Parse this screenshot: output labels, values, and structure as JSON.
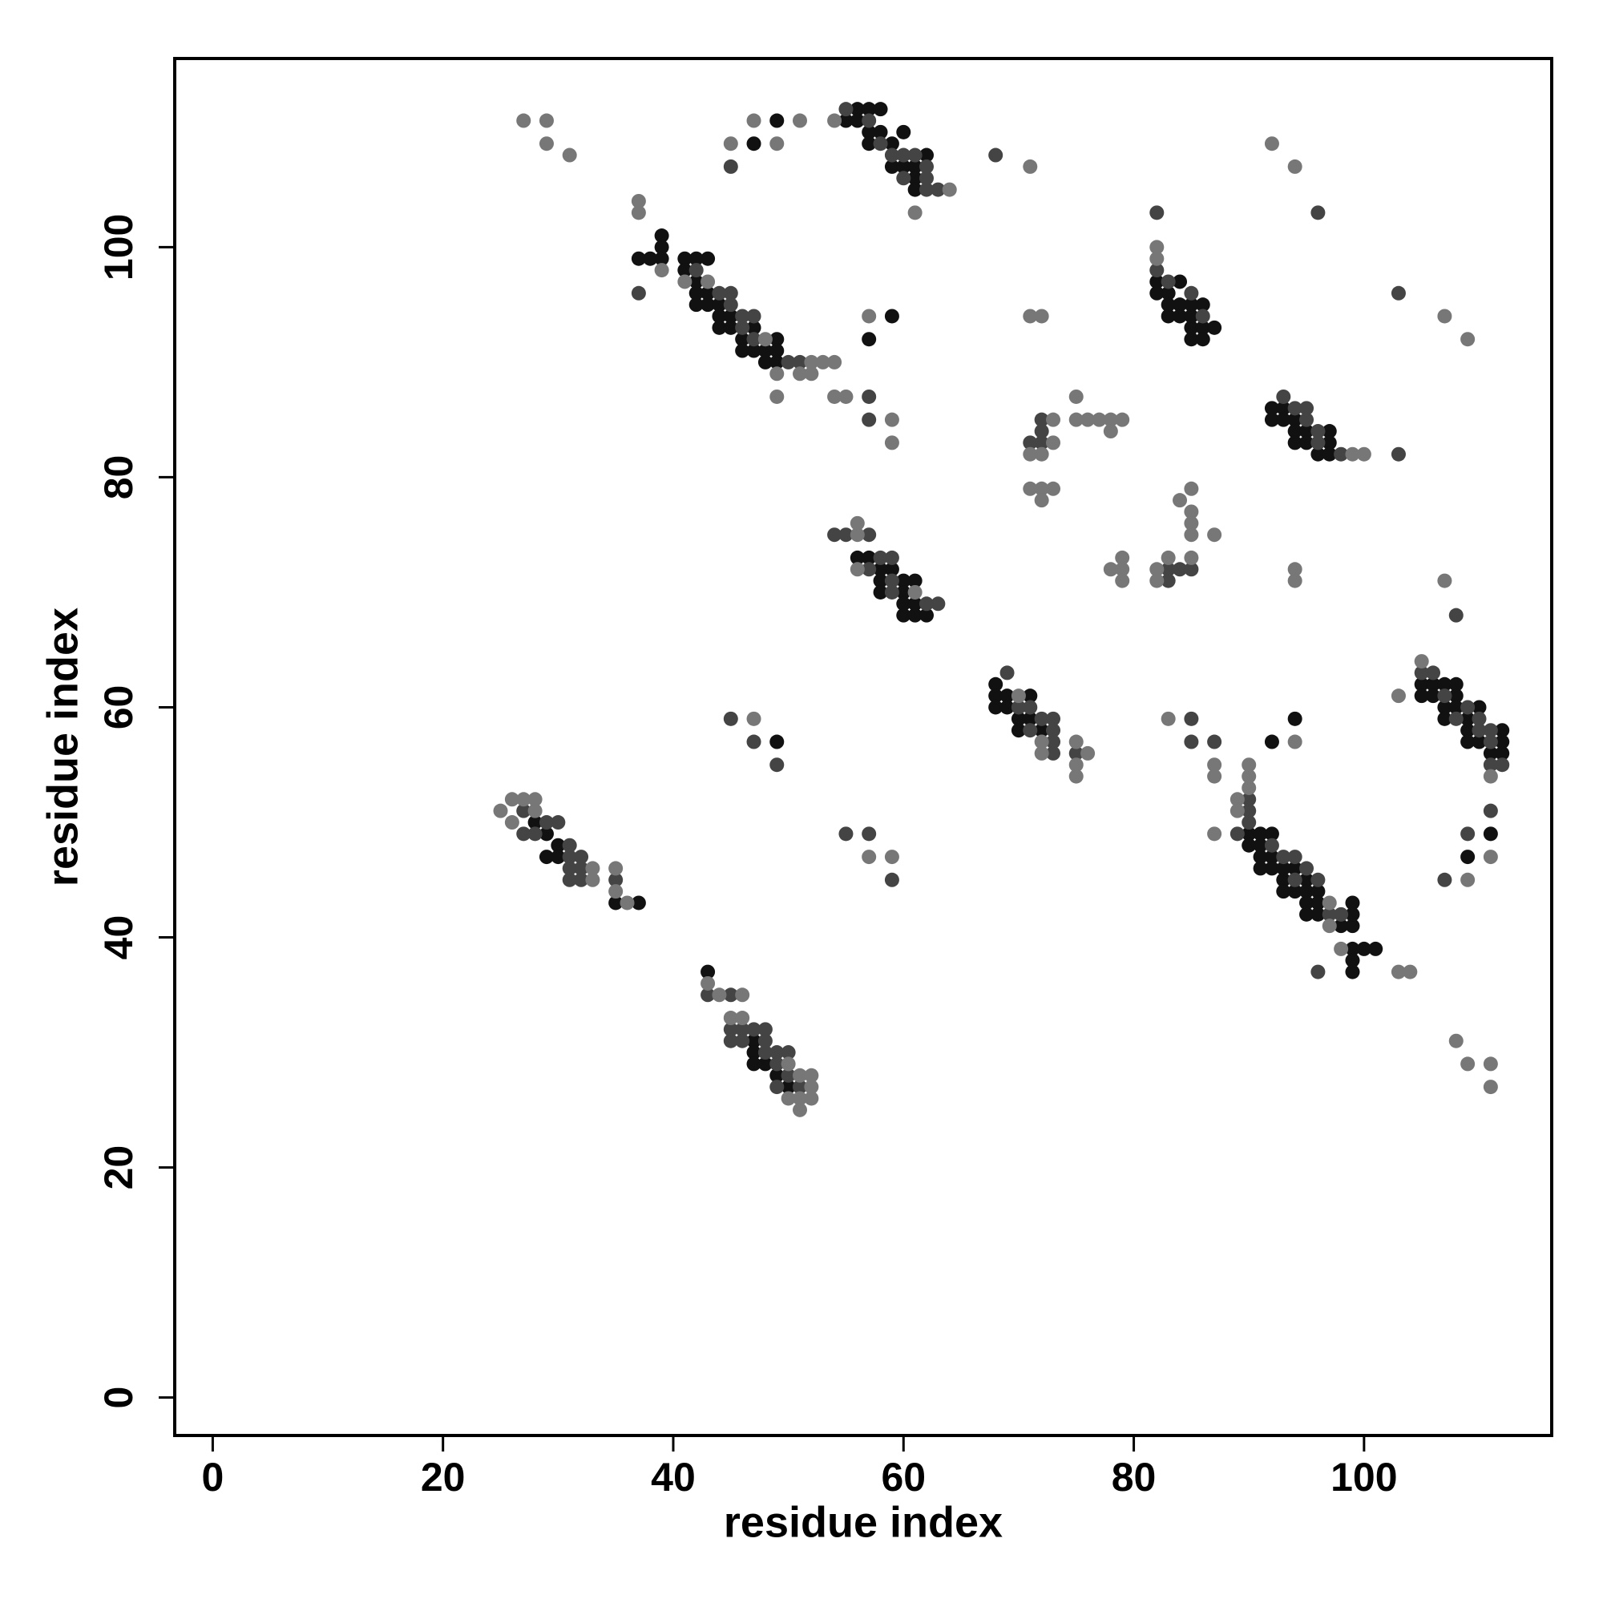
{
  "chart_data": {
    "type": "scatter",
    "x_label": "residue index",
    "y_label": "residue index",
    "xlim": [
      -3.3,
      116.3
    ],
    "ylim": [
      -3.3,
      116.4
    ],
    "xticks": [
      0,
      20,
      40,
      60,
      80,
      100
    ],
    "yticks": [
      0,
      20,
      40,
      60,
      80,
      100
    ],
    "grid": false,
    "series": [
      {
        "color": "#111111",
        "x": [
          28,
          29,
          30,
          29,
          30,
          35,
          37,
          43,
          47,
          47,
          47,
          48,
          49,
          50,
          37,
          38,
          39,
          39,
          39,
          41,
          41,
          42,
          42,
          43,
          42,
          42,
          43,
          43,
          44,
          44,
          45,
          44,
          45,
          46,
          47,
          46,
          47,
          48,
          49,
          48,
          49,
          49,
          57,
          59,
          47,
          49,
          55,
          56,
          56,
          57,
          58,
          57,
          57,
          58,
          60,
          59,
          59,
          60,
          62,
          61,
          61,
          61,
          56,
          57,
          58,
          59,
          58,
          60,
          61,
          58,
          60,
          60,
          61,
          60,
          61,
          62,
          68,
          68,
          69,
          71,
          68,
          69,
          70,
          71,
          70,
          72,
          82,
          82,
          83,
          84,
          83,
          84,
          83,
          84,
          85,
          86,
          85,
          85,
          86,
          87,
          85,
          86,
          92,
          92,
          93,
          93,
          94,
          94,
          95,
          97,
          94,
          95,
          97,
          96,
          97,
          90,
          91,
          92,
          90,
          91,
          91,
          92,
          91,
          92,
          93,
          94,
          93,
          95,
          93,
          94,
          95,
          96,
          95,
          96,
          95,
          96,
          99,
          98,
          99,
          99,
          99,
          100,
          101,
          99,
          99,
          92,
          94,
          105,
          106,
          107,
          108,
          105,
          106,
          108,
          107,
          108,
          110,
          107,
          109,
          109,
          112,
          109,
          110,
          112,
          111,
          112,
          111,
          109,
          49
        ],
        "values": [
          50,
          49,
          48,
          47,
          47,
          43,
          43,
          37,
          31,
          30,
          29,
          29,
          28,
          27,
          99,
          99,
          101,
          100,
          99,
          99,
          98,
          99,
          97,
          99,
          96,
          95,
          96,
          95,
          95,
          94,
          94,
          93,
          93,
          92,
          93,
          91,
          91,
          91,
          92,
          90,
          91,
          90,
          92,
          94,
          109,
          111,
          111,
          112,
          111,
          112,
          112,
          110,
          109,
          110,
          110,
          109,
          107,
          107,
          108,
          107,
          106,
          105,
          73,
          73,
          72,
          72,
          71,
          71,
          71,
          70,
          70,
          69,
          69,
          68,
          68,
          68,
          62,
          61,
          61,
          61,
          60,
          60,
          59,
          59,
          58,
          58,
          97,
          96,
          96,
          97,
          95,
          95,
          94,
          94,
          95,
          95,
          94,
          93,
          93,
          93,
          92,
          92,
          86,
          85,
          86,
          85,
          85,
          84,
          84,
          84,
          83,
          83,
          83,
          82,
          82,
          49,
          49,
          49,
          48,
          48,
          47,
          47,
          46,
          46,
          46,
          46,
          45,
          45,
          44,
          44,
          44,
          44,
          43,
          43,
          42,
          42,
          43,
          41,
          41,
          42,
          39,
          39,
          39,
          38,
          37,
          57,
          59,
          62,
          62,
          62,
          62,
          61,
          61,
          61,
          60,
          60,
          60,
          59,
          59,
          58,
          58,
          57,
          57,
          57,
          56,
          56,
          49,
          47,
          57
        ]
      },
      {
        "color": "#444444",
        "x": [
          27,
          27,
          28,
          29,
          30,
          31,
          31,
          32,
          31,
          32,
          31,
          32,
          35,
          43,
          45,
          45,
          46,
          47,
          48,
          45,
          46,
          48,
          48,
          49,
          50,
          49,
          50,
          49,
          51,
          37,
          42,
          44,
          45,
          45,
          46,
          46,
          47,
          47,
          50,
          51,
          57,
          57,
          45,
          55,
          57,
          58,
          59,
          60,
          61,
          62,
          60,
          62,
          62,
          63,
          68,
          54,
          55,
          57,
          58,
          59,
          57,
          59,
          59,
          62,
          63,
          69,
          70,
          71,
          72,
          73,
          71,
          73,
          73,
          73,
          75,
          71,
          72,
          72,
          72,
          83,
          83,
          84,
          85,
          82,
          82,
          83,
          85,
          86,
          96,
          93,
          94,
          95,
          95,
          96,
          96,
          98,
          103,
          103,
          87,
          90,
          90,
          89,
          90,
          92,
          93,
          94,
          95,
          94,
          96,
          97,
          98,
          96,
          85,
          85,
          105,
          106,
          107,
          109,
          108,
          110,
          110,
          111,
          111,
          111,
          112,
          111,
          109,
          107,
          108,
          45,
          47,
          49,
          55,
          57,
          59
        ],
        "values": [
          51,
          49,
          49,
          50,
          50,
          48,
          47,
          47,
          46,
          46,
          45,
          45,
          45,
          35,
          35,
          32,
          32,
          32,
          32,
          31,
          31,
          31,
          30,
          30,
          30,
          29,
          28,
          27,
          27,
          96,
          98,
          96,
          96,
          95,
          94,
          93,
          94,
          92,
          90,
          90,
          87,
          85,
          107,
          112,
          111,
          109,
          108,
          108,
          108,
          107,
          106,
          106,
          105,
          105,
          108,
          75,
          75,
          75,
          73,
          73,
          72,
          71,
          70,
          69,
          69,
          63,
          60,
          60,
          59,
          59,
          58,
          58,
          57,
          56,
          56,
          83,
          83,
          85,
          84,
          72,
          71,
          72,
          72,
          103,
          98,
          97,
          96,
          94,
          103,
          87,
          86,
          86,
          85,
          84,
          83,
          82,
          82,
          96,
          57,
          52,
          51,
          49,
          50,
          48,
          47,
          47,
          46,
          45,
          45,
          42,
          42,
          37,
          59,
          57,
          63,
          63,
          61,
          60,
          59,
          59,
          58,
          58,
          57,
          55,
          55,
          51,
          49,
          45,
          68,
          59,
          57,
          55,
          49,
          49,
          45
        ]
      },
      {
        "color": "#777777",
        "x": [
          25,
          26,
          27,
          28,
          26,
          28,
          33,
          33,
          35,
          35,
          36,
          43,
          44,
          46,
          45,
          46,
          50,
          51,
          52,
          52,
          50,
          51,
          52,
          51,
          37,
          37,
          39,
          41,
          43,
          48,
          49,
          52,
          53,
          54,
          51,
          52,
          49,
          54,
          55,
          59,
          59,
          57,
          27,
          29,
          29,
          31,
          45,
          47,
          49,
          51,
          54,
          64,
          61,
          71,
          56,
          56,
          56,
          61,
          70,
          72,
          72,
          75,
          76,
          75,
          75,
          71,
          72,
          73,
          72,
          71,
          73,
          71,
          72,
          73,
          72,
          75,
          75,
          76,
          77,
          78,
          79,
          78,
          78,
          79,
          79,
          79,
          82,
          82,
          83,
          84,
          85,
          85,
          85,
          85,
          85,
          87,
          82,
          82,
          92,
          94,
          99,
          100,
          107,
          109,
          87,
          87,
          87,
          90,
          89,
          90,
          90,
          89,
          97,
          97,
          98,
          103,
          104,
          83,
          94,
          103,
          105,
          111,
          111,
          109,
          107,
          94,
          94,
          108,
          109,
          111,
          111,
          47,
          57,
          59
        ],
        "values": [
          51,
          52,
          52,
          52,
          50,
          51,
          46,
          45,
          46,
          44,
          43,
          36,
          35,
          35,
          33,
          33,
          29,
          28,
          28,
          27,
          26,
          26,
          26,
          25,
          104,
          103,
          98,
          97,
          97,
          92,
          89,
          90,
          90,
          90,
          89,
          89,
          87,
          87,
          87,
          85,
          83,
          94,
          111,
          111,
          109,
          108,
          109,
          111,
          109,
          111,
          111,
          105,
          103,
          107,
          75,
          76,
          72,
          70,
          61,
          57,
          56,
          57,
          56,
          55,
          54,
          94,
          94,
          85,
          82,
          82,
          83,
          79,
          79,
          79,
          78,
          87,
          85,
          85,
          85,
          85,
          85,
          84,
          72,
          73,
          72,
          71,
          72,
          71,
          73,
          78,
          79,
          77,
          76,
          75,
          73,
          75,
          100,
          99,
          109,
          107,
          82,
          82,
          94,
          92,
          55,
          54,
          49,
          55,
          52,
          54,
          53,
          51,
          43,
          41,
          39,
          37,
          37,
          59,
          57,
          61,
          64,
          54,
          47,
          45,
          71,
          72,
          71,
          31,
          29,
          29,
          27,
          59,
          47,
          47
        ]
      }
    ]
  }
}
